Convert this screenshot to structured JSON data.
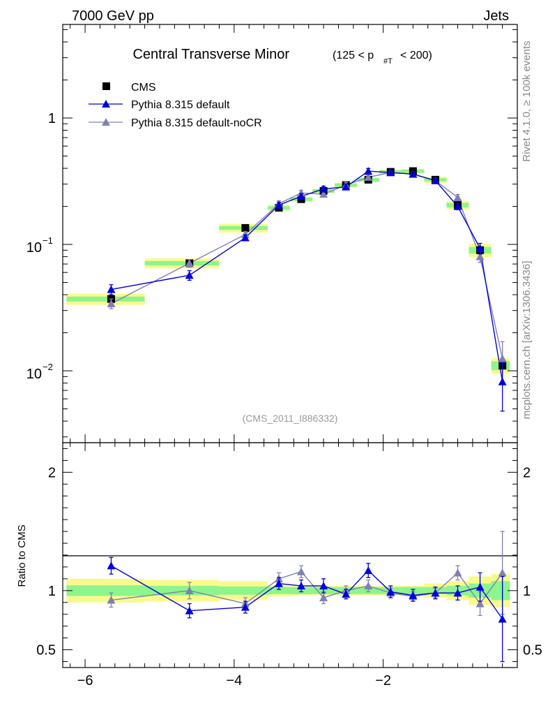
{
  "header": {
    "energy_label": "7000 GeV pp",
    "category_label": "Jets"
  },
  "title": {
    "main": "Central Transverse Minor",
    "cut_open": "(125 < p",
    "cut_sub": "#T",
    "cut_close": " < 200)"
  },
  "side_labels": {
    "rivet": "Rivet 4.1.0, ≥ 100k events",
    "mcplots": "mcplots.cern.ch [arXiv:1306.3436]"
  },
  "analysis_tag": "(CMS_2011_I886332)",
  "ratio_ylabel": "Ratio to CMS",
  "colors": {
    "data": "#000000",
    "pythia_default": "#0000dd",
    "pythia_nocr": "#8080b0",
    "band_green": "#8cf58c",
    "band_yellow": "#fafa8c"
  },
  "chart_data": {
    "type": "scatter",
    "title": "Central Transverse Minor",
    "xlim": [
      -6.3,
      -0.2
    ],
    "xticks": [
      -6,
      -4,
      -2
    ],
    "xtick_labels": [
      "−6",
      "−4",
      "−2"
    ],
    "main": {
      "yscale": "log",
      "ylim": [
        0.0027,
        5.5
      ],
      "ytick_labels": [
        {
          "value": 1,
          "base": "1",
          "exp": ""
        },
        {
          "value": 0.1,
          "base": "10",
          "exp": "−1"
        },
        {
          "value": 0.01,
          "base": "10",
          "exp": "−2"
        }
      ]
    },
    "ratio": {
      "ylim": [
        0.35,
        2.25
      ],
      "yticks": [
        0.5,
        1,
        2
      ],
      "ytick_labels": [
        "0.5",
        "1",
        "2"
      ]
    },
    "legend": [
      "CMS",
      "Pythia 8.315 default",
      "Pythia 8.315 default-noCR"
    ],
    "legend_position": "top-left",
    "bin_edges": [
      -6.25,
      -5.2,
      -4.2,
      -3.55,
      -3.25,
      -2.95,
      -2.65,
      -2.35,
      -2.05,
      -1.75,
      -1.45,
      -1.15,
      -0.85,
      -0.55,
      -0.3
    ],
    "x": [
      -5.65,
      -4.6,
      -3.85,
      -3.4,
      -3.1,
      -2.8,
      -2.5,
      -2.2,
      -1.9,
      -1.6,
      -1.3,
      -1.0,
      -0.7,
      -0.4
    ],
    "series": [
      {
        "name": "CMS",
        "values": [
          0.037,
          0.071,
          0.135,
          0.195,
          0.228,
          0.265,
          0.295,
          0.325,
          0.375,
          0.38,
          0.325,
          0.205,
          0.09,
          0.011
        ],
        "band_inner": [
          0.045,
          0.04,
          0.035,
          0.03,
          0.03,
          0.03,
          0.03,
          0.03,
          0.03,
          0.03,
          0.03,
          0.04,
          0.06,
          0.08
        ],
        "band_outer": [
          0.1,
          0.09,
          0.08,
          0.05,
          0.04,
          0.04,
          0.04,
          0.04,
          0.04,
          0.04,
          0.06,
          0.08,
          0.12,
          0.14
        ]
      },
      {
        "name": "Pythia 8.315 default",
        "values": [
          0.044,
          0.057,
          0.113,
          0.205,
          0.24,
          0.275,
          0.285,
          0.38,
          0.37,
          0.36,
          0.32,
          0.2,
          0.093,
          0.0082
        ],
        "errors": [
          0.004,
          0.005,
          0.006,
          0.01,
          0.012,
          0.014,
          0.014,
          0.019,
          0.018,
          0.017,
          0.015,
          0.012,
          0.009,
          0.0034
        ],
        "ratio": [
          1.21,
          0.83,
          0.86,
          1.06,
          1.04,
          1.04,
          0.97,
          1.17,
          0.99,
          0.96,
          0.98,
          0.98,
          1.03,
          0.76
        ],
        "ratio_err": [
          0.07,
          0.06,
          0.05,
          0.05,
          0.05,
          0.06,
          0.04,
          0.06,
          0.05,
          0.05,
          0.05,
          0.06,
          0.12,
          0.36
        ]
      },
      {
        "name": "Pythia 8.315 default-noCR",
        "values": [
          0.034,
          0.071,
          0.12,
          0.21,
          0.255,
          0.25,
          0.295,
          0.34,
          0.37,
          0.36,
          0.32,
          0.235,
          0.08,
          0.0125
        ],
        "errors": [
          0.003,
          0.005,
          0.006,
          0.011,
          0.013,
          0.013,
          0.015,
          0.017,
          0.018,
          0.017,
          0.015,
          0.013,
          0.008,
          0.0045
        ],
        "ratio": [
          0.92,
          1.0,
          0.89,
          1.1,
          1.16,
          0.94,
          1.0,
          1.04,
          0.98,
          0.95,
          0.98,
          1.15,
          0.89,
          1.15
        ],
        "ratio_err": [
          0.06,
          0.07,
          0.05,
          0.05,
          0.05,
          0.05,
          0.04,
          0.05,
          0.04,
          0.04,
          0.04,
          0.06,
          0.1,
          0.35
        ]
      }
    ]
  }
}
